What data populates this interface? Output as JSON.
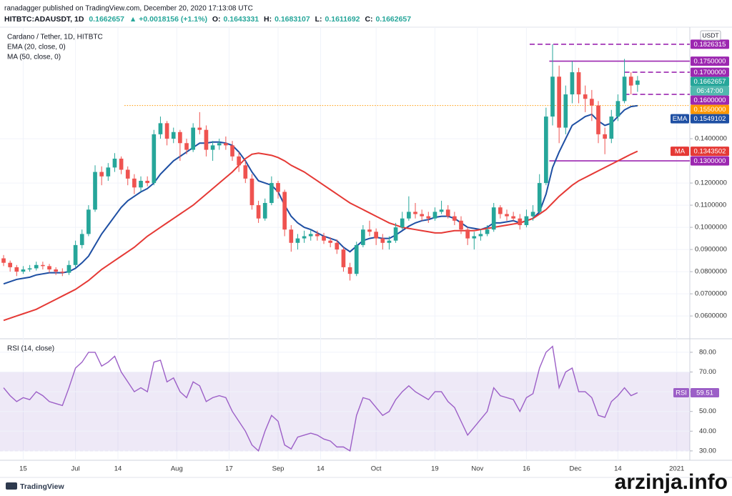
{
  "header": {
    "author_line": "ranadagger published on TradingView.com, December 20, 2020 17:13:08 UTC",
    "symbol": "HITBTC:ADAUSDT, 1D",
    "change": "▲ +0.0018156 (+1.1%)",
    "ohlc_labels": [
      "O:",
      "H:",
      "L:",
      "C:"
    ]
  },
  "footer": {
    "brand": "TradingView",
    "watermark": "arzinja.info"
  },
  "chart_data": [
    {
      "type": "candlestick",
      "title": "Cardano / Tether, 1D, HITBTC",
      "currency": "USDT",
      "countdown": "06:47:00",
      "grid": true,
      "up_color": "#26a69a",
      "down_color": "#ef5350",
      "xlim": [
        -1.1,
        210
      ],
      "xticks": [
        {
          "value": 6,
          "label": "15"
        },
        {
          "value": 22,
          "label": "Jul"
        },
        {
          "value": 35,
          "label": "14"
        },
        {
          "value": 53,
          "label": "Aug"
        },
        {
          "value": 69,
          "label": "17"
        },
        {
          "value": 84,
          "label": "Sep"
        },
        {
          "value": 97,
          "label": "14"
        },
        {
          "value": 114,
          "label": "Oct"
        },
        {
          "value": 132,
          "label": "19"
        },
        {
          "value": 145,
          "label": "Nov"
        },
        {
          "value": 160,
          "label": "16"
        },
        {
          "value": 175,
          "label": "Dec"
        },
        {
          "value": 188,
          "label": "14"
        },
        {
          "value": 206,
          "label": "2021"
        }
      ],
      "ylim": [
        0.051,
        0.1897
      ],
      "yticks": [
        {
          "value": 0.06,
          "label": "0.0600000"
        },
        {
          "value": 0.07,
          "label": "0.0700000"
        },
        {
          "value": 0.08,
          "label": "0.0800000"
        },
        {
          "value": 0.09,
          "label": "0.0900000"
        },
        {
          "value": 0.1,
          "label": "0.1000000"
        },
        {
          "value": 0.11,
          "label": "0.1100000"
        },
        {
          "value": 0.12,
          "label": "0.1200000"
        },
        {
          "value": 0.14,
          "label": "0.1400000"
        }
      ],
      "x": [
        0,
        2,
        4,
        6,
        8,
        10,
        12,
        14,
        16,
        18,
        20,
        22,
        24,
        26,
        28,
        30,
        32,
        34,
        36,
        38,
        40,
        42,
        44,
        46,
        48,
        50,
        52,
        54,
        56,
        58,
        60,
        62,
        64,
        66,
        68,
        70,
        72,
        74,
        76,
        78,
        80,
        82,
        84,
        86,
        88,
        90,
        92,
        94,
        96,
        98,
        100,
        102,
        104,
        106,
        108,
        110,
        112,
        114,
        116,
        118,
        120,
        122,
        124,
        126,
        128,
        130,
        132,
        134,
        136,
        138,
        140,
        142,
        144,
        146,
        148,
        150,
        152,
        154,
        156,
        158,
        160,
        162,
        164,
        166,
        168,
        170,
        172,
        174,
        176,
        178,
        180,
        182,
        184,
        186,
        188,
        190,
        192,
        194
      ],
      "candles": {
        "open": [
          0.086,
          0.084,
          0.082,
          0.08,
          0.081,
          0.0815,
          0.083,
          0.0825,
          0.081,
          0.08,
          0.0795,
          0.083,
          0.092,
          0.097,
          0.108,
          0.125,
          0.123,
          0.127,
          0.131,
          0.126,
          0.122,
          0.118,
          0.121,
          0.12,
          0.142,
          0.147,
          0.14,
          0.143,
          0.138,
          0.135,
          0.145,
          0.144,
          0.135,
          0.137,
          0.138,
          0.137,
          0.132,
          0.128,
          0.122,
          0.11,
          0.104,
          0.111,
          0.12,
          0.116,
          0.099,
          0.093,
          0.095,
          0.096,
          0.097,
          0.096,
          0.094,
          0.093,
          0.09,
          0.082,
          0.079,
          0.092,
          0.099,
          0.098,
          0.095,
          0.093,
          0.094,
          0.1,
          0.104,
          0.107,
          0.106,
          0.105,
          0.104,
          0.107,
          0.108,
          0.105,
          0.103,
          0.099,
          0.095,
          0.096,
          0.097,
          0.099,
          0.109,
          0.106,
          0.105,
          0.104,
          0.101,
          0.105,
          0.107,
          0.12,
          0.15,
          0.168,
          0.145,
          0.16,
          0.17,
          0.16,
          0.158,
          0.155,
          0.142,
          0.14,
          0.15,
          0.157,
          0.168,
          0.1643331
        ],
        "high": [
          0.0875,
          0.085,
          0.083,
          0.0825,
          0.083,
          0.0845,
          0.0845,
          0.0835,
          0.082,
          0.0815,
          0.085,
          0.094,
          0.099,
          0.11,
          0.128,
          0.1275,
          0.129,
          0.1335,
          0.132,
          0.1275,
          0.124,
          0.123,
          0.123,
          0.144,
          0.15,
          0.148,
          0.145,
          0.144,
          0.14,
          0.147,
          0.152,
          0.146,
          0.139,
          0.14,
          0.141,
          0.139,
          0.134,
          0.13,
          0.124,
          0.112,
          0.113,
          0.123,
          0.121,
          0.117,
          0.101,
          0.097,
          0.0985,
          0.099,
          0.0985,
          0.0975,
          0.0955,
          0.0945,
          0.091,
          0.084,
          0.0935,
          0.101,
          0.103,
          0.0995,
          0.097,
          0.096,
          0.102,
          0.107,
          0.114,
          0.111,
          0.108,
          0.107,
          0.109,
          0.112,
          0.11,
          0.107,
          0.105,
          0.1,
          0.098,
          0.099,
          0.101,
          0.111,
          0.11,
          0.108,
          0.107,
          0.106,
          0.108,
          0.11,
          0.124,
          0.154,
          0.1826,
          0.173,
          0.164,
          0.175,
          0.172,
          0.164,
          0.162,
          0.157,
          0.145,
          0.153,
          0.16,
          0.176,
          0.17,
          0.1683107
        ],
        "low": [
          0.0825,
          0.08,
          0.078,
          0.079,
          0.08,
          0.0805,
          0.081,
          0.0795,
          0.0785,
          0.078,
          0.0785,
          0.082,
          0.0905,
          0.096,
          0.107,
          0.119,
          0.121,
          0.125,
          0.124,
          0.119,
          0.115,
          0.116,
          0.1185,
          0.119,
          0.14,
          0.137,
          0.138,
          0.13,
          0.133,
          0.134,
          0.142,
          0.132,
          0.13,
          0.135,
          0.135,
          0.13,
          0.125,
          0.12,
          0.108,
          0.102,
          0.103,
          0.11,
          0.113,
          0.096,
          0.089,
          0.09,
          0.093,
          0.094,
          0.094,
          0.0925,
          0.091,
          0.088,
          0.08,
          0.076,
          0.078,
          0.091,
          0.096,
          0.092,
          0.09,
          0.09,
          0.093,
          0.099,
          0.103,
          0.104,
          0.103,
          0.102,
          0.103,
          0.106,
          0.104,
          0.101,
          0.097,
          0.092,
          0.09,
          0.094,
          0.096,
          0.098,
          0.104,
          0.103,
          0.103,
          0.099,
          0.1,
          0.103,
          0.106,
          0.119,
          0.146,
          0.138,
          0.142,
          0.156,
          0.156,
          0.152,
          0.148,
          0.138,
          0.133,
          0.138,
          0.148,
          0.156,
          0.16,
          0.1611692
        ],
        "close": [
          0.084,
          0.082,
          0.08,
          0.081,
          0.0815,
          0.083,
          0.0825,
          0.081,
          0.08,
          0.0795,
          0.083,
          0.092,
          0.097,
          0.108,
          0.125,
          0.123,
          0.127,
          0.131,
          0.126,
          0.122,
          0.118,
          0.121,
          0.12,
          0.142,
          0.147,
          0.14,
          0.143,
          0.138,
          0.135,
          0.145,
          0.144,
          0.135,
          0.137,
          0.138,
          0.137,
          0.132,
          0.128,
          0.122,
          0.11,
          0.104,
          0.111,
          0.12,
          0.116,
          0.099,
          0.093,
          0.095,
          0.096,
          0.097,
          0.096,
          0.094,
          0.093,
          0.09,
          0.082,
          0.079,
          0.092,
          0.099,
          0.098,
          0.095,
          0.093,
          0.094,
          0.1,
          0.104,
          0.107,
          0.106,
          0.105,
          0.104,
          0.107,
          0.108,
          0.105,
          0.103,
          0.099,
          0.095,
          0.096,
          0.097,
          0.099,
          0.109,
          0.106,
          0.105,
          0.104,
          0.101,
          0.105,
          0.107,
          0.12,
          0.15,
          0.168,
          0.145,
          0.16,
          0.17,
          0.16,
          0.158,
          0.155,
          0.142,
          0.14,
          0.15,
          0.157,
          0.168,
          0.164,
          0.1662657
        ]
      },
      "series": [
        {
          "name": "EMA (20, close, 0)",
          "badge": "EMA",
          "color": "#1e4fa3",
          "values": [
            0.0745,
            0.0755,
            0.0765,
            0.077,
            0.0775,
            0.0785,
            0.079,
            0.0795,
            0.0795,
            0.0795,
            0.08,
            0.0815,
            0.084,
            0.087,
            0.092,
            0.097,
            0.101,
            0.105,
            0.109,
            0.112,
            0.114,
            0.116,
            0.1175,
            0.12,
            0.124,
            0.127,
            0.13,
            0.132,
            0.134,
            0.136,
            0.138,
            0.138,
            0.1385,
            0.1385,
            0.138,
            0.137,
            0.134,
            0.13,
            0.125,
            0.121,
            0.12,
            0.119,
            0.116,
            0.11,
            0.105,
            0.102,
            0.1,
            0.099,
            0.0975,
            0.096,
            0.095,
            0.094,
            0.091,
            0.089,
            0.0915,
            0.094,
            0.095,
            0.0955,
            0.095,
            0.095,
            0.0965,
            0.0985,
            0.1005,
            0.102,
            0.103,
            0.1035,
            0.1045,
            0.105,
            0.105,
            0.104,
            0.102,
            0.1,
            0.0995,
            0.099,
            0.1,
            0.102,
            0.102,
            0.1025,
            0.103,
            0.102,
            0.103,
            0.104,
            0.107,
            0.115,
            0.127,
            0.134,
            0.14,
            0.146,
            0.148,
            0.15,
            0.151,
            0.148,
            0.146,
            0.147,
            0.15,
            0.153,
            0.1545,
            0.1549102
          ]
        },
        {
          "name": "MA (50, close, 0)",
          "badge": "MA",
          "color": "#e53935",
          "values": [
            0.058,
            0.059,
            0.06,
            0.061,
            0.062,
            0.063,
            0.0645,
            0.066,
            0.0675,
            0.069,
            0.0705,
            0.072,
            0.074,
            0.076,
            0.0785,
            0.081,
            0.083,
            0.085,
            0.087,
            0.089,
            0.091,
            0.0935,
            0.096,
            0.098,
            0.1,
            0.102,
            0.104,
            0.106,
            0.108,
            0.11,
            0.1125,
            0.115,
            0.1175,
            0.12,
            0.1225,
            0.125,
            0.128,
            0.131,
            0.133,
            0.1335,
            0.133,
            0.1325,
            0.1315,
            0.13,
            0.128,
            0.1265,
            0.125,
            0.123,
            0.121,
            0.119,
            0.117,
            0.115,
            0.113,
            0.111,
            0.1095,
            0.108,
            0.1065,
            0.105,
            0.1035,
            0.102,
            0.101,
            0.1,
            0.0995,
            0.099,
            0.0985,
            0.098,
            0.0975,
            0.0975,
            0.098,
            0.0985,
            0.0985,
            0.0985,
            0.0985,
            0.099,
            0.0995,
            0.1,
            0.1005,
            0.101,
            0.1015,
            0.102,
            0.103,
            0.104,
            0.106,
            0.108,
            0.111,
            0.114,
            0.1165,
            0.119,
            0.121,
            0.1225,
            0.124,
            0.1255,
            0.127,
            0.1285,
            0.13,
            0.1315,
            0.133,
            0.1343502
          ]
        }
      ],
      "levels": [
        {
          "value": 0.1826315,
          "label": "0.1826315",
          "style": "dashed",
          "color": "#9c27b0",
          "start": 161
        },
        {
          "value": 0.175,
          "label": "0.1750000",
          "style": "solid",
          "color": "#9c27b0",
          "start": 167
        },
        {
          "value": 0.17,
          "label": "0.1700000",
          "style": "dashed",
          "color": "#9c27b0",
          "start": 190
        },
        {
          "value": 0.16,
          "label": "0.1600000",
          "style": "dashed",
          "color": "#9c27b0",
          "start": 190
        },
        {
          "value": 0.155,
          "label": "0.1550000",
          "style": "dotted",
          "color": "#ff9800",
          "start": 37
        },
        {
          "value": 0.13,
          "label": "0.1300000",
          "style": "solid",
          "color": "#9c27b0",
          "start": 167
        }
      ]
    },
    {
      "type": "line",
      "title": "RSI (14, close)",
      "grid": true,
      "band": [
        30,
        70
      ],
      "band_color": "#7e57c2",
      "ylim": [
        26.7,
        85.4
      ],
      "yticks": [
        {
          "value": 30,
          "label": "30.00"
        },
        {
          "value": 40,
          "label": "40.00"
        },
        {
          "value": 50,
          "label": "50.00"
        },
        {
          "value": 60,
          "label": "60.00"
        },
        {
          "value": 70,
          "label": "70.00"
        },
        {
          "value": 80,
          "label": "80.00"
        }
      ],
      "series": [
        {
          "name": "RSI",
          "color": "#9c5fc7",
          "values": [
            62,
            58,
            55,
            57,
            56,
            60,
            58,
            55,
            54,
            53,
            62,
            72,
            75,
            80,
            80,
            73,
            75,
            78,
            70,
            65,
            60,
            62,
            60,
            75,
            76,
            65,
            67,
            60,
            57,
            65,
            63,
            55,
            57,
            58,
            57,
            50,
            45,
            40,
            33,
            30,
            40,
            48,
            45,
            33,
            31,
            37,
            38,
            39,
            38,
            36,
            35,
            32,
            32,
            30,
            48,
            57,
            56,
            52,
            48,
            50,
            56,
            60,
            63,
            60,
            58,
            56,
            60,
            60,
            55,
            52,
            45,
            38,
            42,
            46,
            50,
            62,
            58,
            57,
            56,
            50,
            57,
            59,
            72,
            80,
            83,
            62,
            70,
            72,
            60,
            60,
            57,
            48,
            47,
            55,
            58,
            62,
            58,
            59.51
          ]
        }
      ]
    }
  ]
}
